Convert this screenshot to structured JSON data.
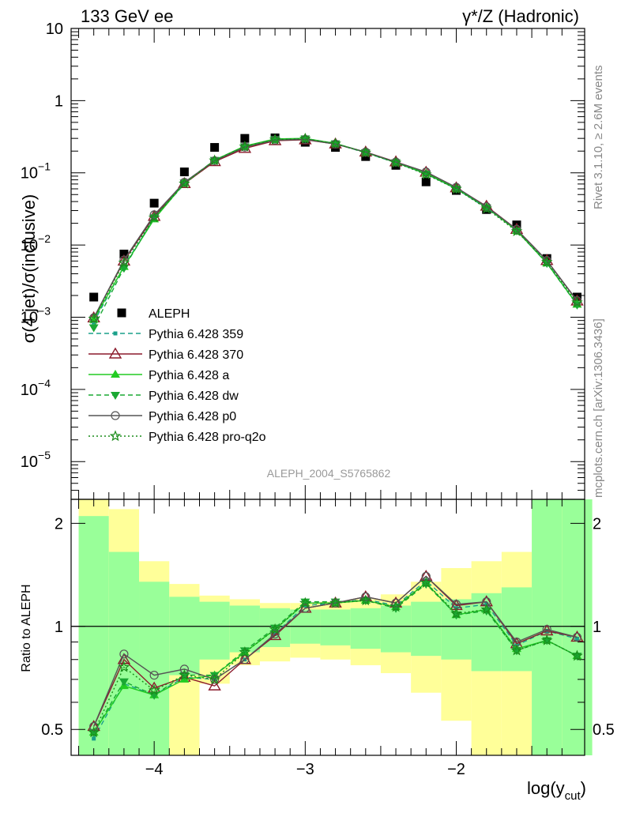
{
  "header": {
    "left": "133 GeV ee",
    "right": "γ*/Z (Hadronic)",
    "watermark": "ALEPH_2004_S5765862",
    "side_top": "Rivet 3.1.10, ≥ 2.6M events",
    "side_bottom": "mcplots.cern.ch [arXiv:1306.3436]"
  },
  "chart_data": [
    {
      "type": "scatter",
      "ylabel": "σ(4 jet)/σ(inclusive)",
      "yscale": "log",
      "ylim": [
        3e-06,
        10
      ],
      "xlim": [
        -4.55,
        -1.15
      ],
      "yticks": [
        {
          "value": 10,
          "label": "10"
        },
        {
          "value": 1,
          "label": "1"
        },
        {
          "value": 0.1,
          "label": "10",
          "exp": "−1"
        },
        {
          "value": 0.01,
          "label": "10",
          "exp": "−2"
        },
        {
          "value": 0.001,
          "label": "10",
          "exp": "−3"
        },
        {
          "value": 0.0001,
          "label": "10",
          "exp": "−4"
        },
        {
          "value": 1e-05,
          "label": "10",
          "exp": "−5"
        }
      ],
      "x": [
        -4.4,
        -4.2,
        -4.0,
        -3.8,
        -3.6,
        -3.4,
        -3.2,
        -3.0,
        -2.8,
        -2.6,
        -2.4,
        -2.2,
        -2.0,
        -1.8,
        -1.6,
        -1.4,
        -1.2
      ],
      "series": [
        {
          "name": "ALEPH",
          "color": "#000000",
          "marker": "square",
          "line": "none",
          "values": [
            0.0019,
            0.0075,
            0.038,
            0.103,
            0.225,
            0.3,
            0.305,
            0.265,
            0.225,
            0.168,
            0.127,
            0.075,
            0.057,
            0.031,
            0.019,
            0.0065,
            0.0019
          ]
        },
        {
          "name": "Pythia 6.428 359",
          "color": "#1aa08a",
          "marker": "small-square",
          "line": "dashed",
          "values": [
            0.00085,
            0.0051,
            0.0235,
            0.07,
            0.148,
            0.226,
            0.285,
            0.293,
            0.252,
            0.19,
            0.138,
            0.097,
            0.06,
            0.0325,
            0.0163,
            0.0058,
            0.0015
          ]
        },
        {
          "name": "Pythia 6.428 370",
          "color": "#8b1a2b",
          "marker": "open-triangle",
          "line": "solid",
          "values": [
            0.00098,
            0.006,
            0.025,
            0.071,
            0.143,
            0.218,
            0.279,
            0.287,
            0.251,
            0.194,
            0.142,
            0.102,
            0.062,
            0.0345,
            0.0165,
            0.0061,
            0.00168
          ]
        },
        {
          "name": "Pythia 6.428 a",
          "color": "#22cc22",
          "marker": "triangle",
          "line": "solid",
          "values": [
            0.00093,
            0.005,
            0.0228,
            0.072,
            0.15,
            0.235,
            0.295,
            0.3,
            0.255,
            0.193,
            0.14,
            0.098,
            0.061,
            0.0335,
            0.0158,
            0.0056,
            0.0015
          ]
        },
        {
          "name": "Pythia 6.428 dw",
          "color": "#1aa833",
          "marker": "inverted-triangle",
          "line": "dashed",
          "values": [
            0.00072,
            0.0048,
            0.024,
            0.073,
            0.15,
            0.232,
            0.292,
            0.298,
            0.255,
            0.192,
            0.139,
            0.097,
            0.06,
            0.033,
            0.0158,
            0.0056,
            0.00148
          ]
        },
        {
          "name": "Pythia 6.428 p0",
          "color": "#555555",
          "marker": "open-circle",
          "line": "solid",
          "values": [
            0.00098,
            0.0062,
            0.0262,
            0.074,
            0.147,
            0.227,
            0.284,
            0.29,
            0.25,
            0.194,
            0.141,
            0.103,
            0.063,
            0.034,
            0.0165,
            0.0061,
            0.0017
          ]
        },
        {
          "name": "Pythia 6.428 pro-q2o",
          "color": "#1a8c1a",
          "marker": "star",
          "line": "dotted",
          "values": [
            0.00095,
            0.0057,
            0.024,
            0.071,
            0.148,
            0.23,
            0.288,
            0.297,
            0.254,
            0.19,
            0.138,
            0.095,
            0.06,
            0.032,
            0.0155,
            0.0058,
            0.0016
          ]
        }
      ]
    },
    {
      "type": "line",
      "xlabel": "log(y",
      "xlabel_sub": "cut",
      "xlabel_end": ")",
      "ylabel": "Ratio to ALEPH",
      "yscale": "log",
      "ylim": [
        0.42,
        2.35
      ],
      "xlim": [
        -4.55,
        -1.15
      ],
      "yticks": [
        {
          "value": 0.5,
          "label": "0.5"
        },
        {
          "value": 1,
          "label": "1"
        },
        {
          "value": 2,
          "label": "2"
        }
      ],
      "xticks": [
        {
          "value": -4,
          "label": "−4"
        },
        {
          "value": -3,
          "label": "−3"
        },
        {
          "value": -2,
          "label": "−2"
        }
      ],
      "bands": {
        "edges": [
          -4.5,
          -4.3,
          -4.1,
          -3.9,
          -3.7,
          -3.5,
          -3.3,
          -3.1,
          -2.9,
          -2.7,
          -2.5,
          -2.3,
          -2.1,
          -1.9,
          -1.7,
          -1.5,
          -1.3,
          -1.1
        ],
        "green_lo": [
          0.3,
          0.3,
          0.3,
          0.72,
          0.8,
          0.84,
          0.87,
          0.89,
          0.88,
          0.86,
          0.84,
          0.82,
          0.8,
          0.74,
          0.74,
          0.3,
          0.3
        ],
        "green_hi": [
          2.1,
          1.65,
          1.35,
          1.22,
          1.18,
          1.15,
          1.13,
          1.12,
          1.12,
          1.13,
          1.15,
          1.18,
          1.2,
          1.25,
          1.3,
          2.5,
          2.5
        ],
        "yellow_lo": [
          0.3,
          0.3,
          0.3,
          0.3,
          0.68,
          0.77,
          0.79,
          0.81,
          0.8,
          0.77,
          0.73,
          0.64,
          0.53,
          0.3,
          0.3,
          0.3,
          0.3
        ],
        "yellow_hi": [
          2.5,
          2.2,
          1.55,
          1.33,
          1.23,
          1.2,
          1.17,
          1.17,
          1.18,
          1.2,
          1.24,
          1.35,
          1.48,
          1.55,
          1.65,
          2.5,
          2.5
        ],
        "green_color": "#99ff99",
        "yellow_color": "#ffff99"
      },
      "x": [
        -4.4,
        -4.2,
        -4.0,
        -3.8,
        -3.6,
        -3.4,
        -3.2,
        -3.0,
        -2.8,
        -2.6,
        -2.4,
        -2.2,
        -2.0,
        -1.8,
        -1.6,
        -1.4,
        -1.2
      ],
      "series": [
        {
          "name": "Pythia 6.428 359",
          "color": "#1aa08a",
          "marker": "small-square",
          "line": "dashed",
          "values": [
            0.47,
            0.68,
            0.63,
            0.71,
            0.7,
            0.8,
            0.95,
            1.15,
            1.17,
            1.2,
            1.15,
            1.36,
            1.13,
            1.16,
            0.88,
            0.97,
            0.92
          ]
        },
        {
          "name": "Pythia 6.428 370",
          "color": "#8b1a2b",
          "marker": "open-triangle",
          "line": "solid",
          "values": [
            0.51,
            0.8,
            0.66,
            0.71,
            0.67,
            0.8,
            0.94,
            1.13,
            1.17,
            1.22,
            1.17,
            1.4,
            1.15,
            1.18,
            0.89,
            0.97,
            0.93
          ]
        },
        {
          "name": "Pythia 6.428 a",
          "color": "#22cc22",
          "marker": "triangle",
          "line": "solid",
          "values": [
            0.49,
            0.67,
            0.63,
            0.7,
            0.72,
            0.84,
            0.98,
            1.17,
            1.17,
            1.19,
            1.14,
            1.34,
            1.08,
            1.12,
            0.86,
            0.91,
            0.82
          ]
        },
        {
          "name": "Pythia 6.428 dw",
          "color": "#1aa833",
          "marker": "inverted-triangle",
          "line": "dashed",
          "values": [
            0.49,
            0.69,
            0.63,
            0.72,
            0.72,
            0.85,
            0.99,
            1.18,
            1.18,
            1.19,
            1.13,
            1.33,
            1.08,
            1.11,
            0.85,
            0.91,
            0.82
          ]
        },
        {
          "name": "Pythia 6.428 p0",
          "color": "#555555",
          "marker": "open-circle",
          "line": "solid",
          "values": [
            0.51,
            0.83,
            0.72,
            0.75,
            0.7,
            0.8,
            0.95,
            1.13,
            1.17,
            1.22,
            1.17,
            1.4,
            1.16,
            1.18,
            0.9,
            0.98,
            0.93
          ]
        },
        {
          "name": "Pythia 6.428 pro-q2o",
          "color": "#1a8c1a",
          "marker": "star",
          "line": "dotted",
          "values": [
            0.49,
            0.76,
            0.65,
            0.72,
            0.7,
            0.84,
            0.98,
            1.17,
            1.17,
            1.19,
            1.14,
            1.34,
            1.09,
            1.12,
            0.85,
            0.91,
            0.82
          ]
        }
      ]
    }
  ]
}
